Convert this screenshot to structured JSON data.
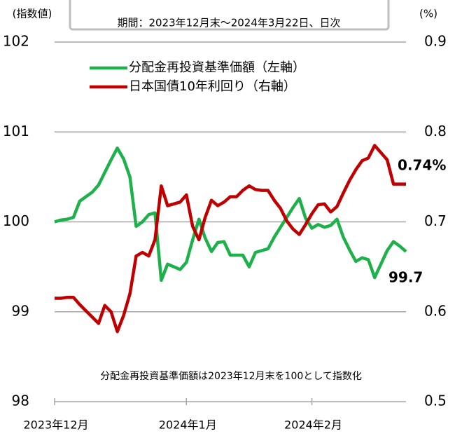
{
  "chart_data": {
    "type": "line",
    "subtitle": "期間：2023年12月末～2024年3月22日、日次",
    "y_label": "(指数値)",
    "y2_label": "(%)",
    "note": "分配金再投資基準価額は2023年12月末を100として指数化",
    "categories": [
      "2023年12月",
      null,
      null,
      null,
      null,
      null,
      null,
      null,
      null,
      null,
      null,
      null,
      null,
      null,
      null,
      null,
      null,
      null,
      null,
      null,
      null,
      "2024年1月",
      null,
      null,
      null,
      null,
      null,
      null,
      null,
      null,
      null,
      null,
      null,
      null,
      null,
      null,
      null,
      null,
      null,
      null,
      null,
      "2024年2月",
      null,
      null,
      null,
      null,
      null,
      null,
      null,
      null,
      null,
      null,
      null,
      null,
      null,
      null,
      null
    ],
    "series": [
      {
        "name": "分配金再投資基準価額（左軸）",
        "color": "#1db04b",
        "axis": "y",
        "values": [
          100.0,
          100.02,
          100.03,
          100.05,
          100.23,
          100.28,
          100.33,
          100.41,
          100.55,
          100.69,
          100.82,
          100.7,
          100.5,
          99.95,
          100.0,
          100.08,
          100.1,
          99.35,
          99.53,
          99.5,
          99.47,
          99.55,
          99.8,
          100.03,
          99.82,
          99.67,
          99.77,
          99.78,
          99.63,
          99.63,
          99.63,
          99.5,
          99.66,
          99.68,
          99.7,
          99.83,
          99.94,
          100.05,
          100.16,
          100.26,
          100.04,
          99.93,
          99.97,
          99.94,
          99.96,
          100.03,
          99.83,
          99.69,
          99.56,
          99.6,
          99.58,
          99.38,
          99.53,
          99.68,
          99.78,
          99.73,
          99.67
        ]
      },
      {
        "name": "日本国債10年利回り（右軸）",
        "color": "#c00000",
        "axis": "y2",
        "values": [
          0.615,
          0.615,
          0.616,
          0.616,
          0.608,
          0.601,
          0.594,
          0.587,
          0.607,
          0.6,
          0.578,
          0.596,
          0.62,
          0.662,
          0.666,
          0.662,
          0.68,
          0.74,
          0.718,
          0.72,
          0.722,
          0.73,
          0.695,
          0.68,
          0.705,
          0.724,
          0.718,
          0.722,
          0.728,
          0.728,
          0.735,
          0.74,
          0.736,
          0.735,
          0.735,
          0.724,
          0.715,
          0.701,
          0.692,
          0.686,
          0.697,
          0.709,
          0.719,
          0.72,
          0.711,
          0.717,
          0.732,
          0.746,
          0.758,
          0.768,
          0.771,
          0.785,
          0.777,
          0.769,
          0.742,
          0.742,
          0.742
        ]
      }
    ],
    "annotations": [
      {
        "text": "99.7",
        "color": "#2a8c1c"
      },
      {
        "text": "0.74%",
        "color": "#c0504d"
      }
    ],
    "ylim": [
      98,
      102
    ],
    "yticks": [
      98,
      99,
      100,
      101,
      102
    ],
    "y2lim": [
      0.5,
      0.9
    ],
    "y2ticks": [
      0.5,
      0.6,
      0.7,
      0.8,
      0.9
    ],
    "grid": true
  }
}
